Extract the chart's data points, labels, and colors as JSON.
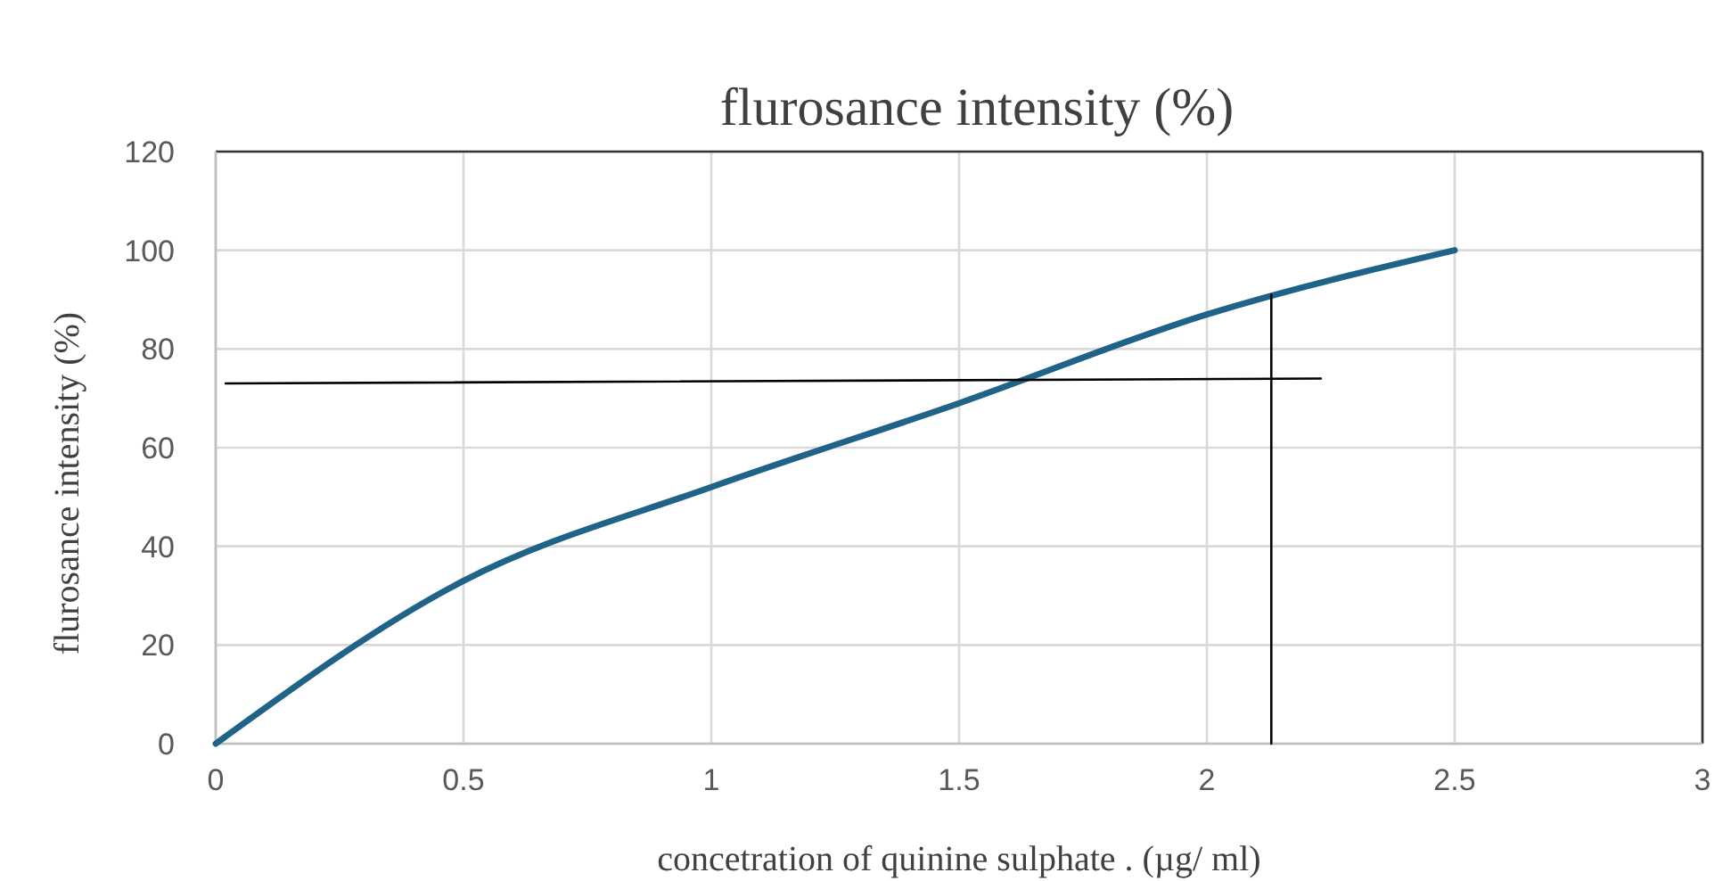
{
  "chart_data": {
    "type": "line",
    "title": "flurosance intensity (%)",
    "xlabel": "concetration of quinine sulphate . (µg/ ml)",
    "ylabel": "flurosance intensity (%)",
    "xlim": [
      0,
      3
    ],
    "xticks": [
      0,
      0.5,
      1,
      1.5,
      2,
      2.5,
      3
    ],
    "ylim": [
      0,
      120
    ],
    "yticks": [
      0,
      20,
      40,
      60,
      80,
      100,
      120
    ],
    "grid": true,
    "marker": "none",
    "line_style": "solid",
    "series": [
      {
        "color": "#1f6389",
        "x": [
          0,
          0.5,
          1,
          1.5,
          2,
          2.5
        ],
        "values": [
          0,
          33,
          52,
          69,
          87,
          100
        ]
      },
      {
        "color": "#000000",
        "x": [
          0.02,
          2.23
        ],
        "values": [
          73,
          74
        ]
      },
      {
        "color": "#000000",
        "x": [
          2.13,
          2.13
        ],
        "values": [
          0,
          91
        ]
      }
    ]
  }
}
